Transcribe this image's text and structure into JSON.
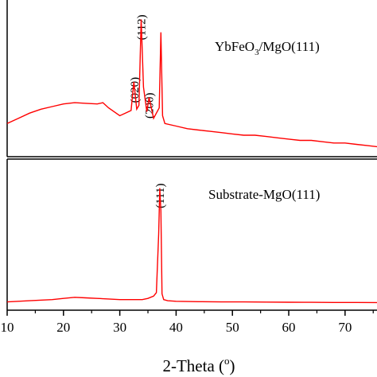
{
  "chart_data": [
    {
      "type": "line",
      "panel": "top",
      "series": [
        {
          "name": "YbFeO3/MgO(111)",
          "x": [
            10,
            12,
            14,
            16,
            18,
            20,
            22,
            24,
            26,
            27,
            28,
            30,
            31,
            32,
            32.5,
            33,
            33.4,
            33.8,
            34.2,
            34.8,
            35.2,
            36,
            37,
            37.3,
            37.6,
            38,
            40,
            42,
            44,
            46,
            48,
            50,
            52,
            54,
            56,
            58,
            60,
            62,
            64,
            66,
            68,
            70,
            72,
            74,
            76
          ],
          "y": [
            20,
            24,
            28,
            31,
            33,
            35,
            36,
            35.5,
            35,
            36,
            32,
            26,
            28,
            30,
            52,
            31,
            34,
            100,
            48,
            29,
            40,
            24,
            32,
            90,
            26,
            20,
            18,
            16,
            15,
            14,
            13,
            12,
            11,
            11,
            10,
            9,
            8,
            7,
            7,
            6,
            5,
            5,
            4,
            3,
            2
          ]
        }
      ],
      "annotations": [
        {
          "text": "(020)",
          "x": 32.6
        },
        {
          "text": "(112)",
          "x": 33.8
        },
        {
          "text": "(200)",
          "x": 35.2
        }
      ],
      "label": "YbFeO",
      "label_sub": "3",
      "label_rest": "/MgO(111)",
      "xlim": [
        10,
        76
      ],
      "ylim": [
        0,
        110
      ]
    },
    {
      "type": "line",
      "panel": "bottom",
      "series": [
        {
          "name": "Substrate-MgO(111)",
          "x": [
            10,
            14,
            18,
            20,
            22,
            24,
            26,
            28,
            30,
            32,
            34,
            35,
            36,
            36.5,
            36.9,
            37.1,
            37.3,
            37.5,
            37.8,
            38.5,
            40,
            44,
            48,
            52,
            56,
            60,
            64,
            68,
            72,
            76
          ],
          "y": [
            1,
            2,
            3,
            4,
            5,
            4.5,
            4,
            3.5,
            3,
            3,
            3,
            4,
            6,
            9,
            60,
            100,
            80,
            8,
            3,
            2,
            1.5,
            1.2,
            1,
            1,
            0.8,
            0.7,
            0.6,
            0.5,
            0.5,
            0.4
          ]
        }
      ],
      "annotations": [
        {
          "text": "(111)",
          "x": 37.1
        }
      ],
      "label": "Substrate-MgO(111)",
      "xlim": [
        10,
        76
      ],
      "ylim": [
        0,
        110
      ]
    }
  ],
  "xaxis": {
    "ticks": [
      10,
      20,
      30,
      40,
      50,
      60,
      70
    ],
    "tick_labels": [
      "10",
      "20",
      "30",
      "40",
      "50",
      "60",
      "70"
    ],
    "label": "2-Theta (",
    "label_sup": "o",
    "label_end": ")"
  },
  "colors": {
    "series": "#ff0000",
    "axes": "#000000"
  }
}
